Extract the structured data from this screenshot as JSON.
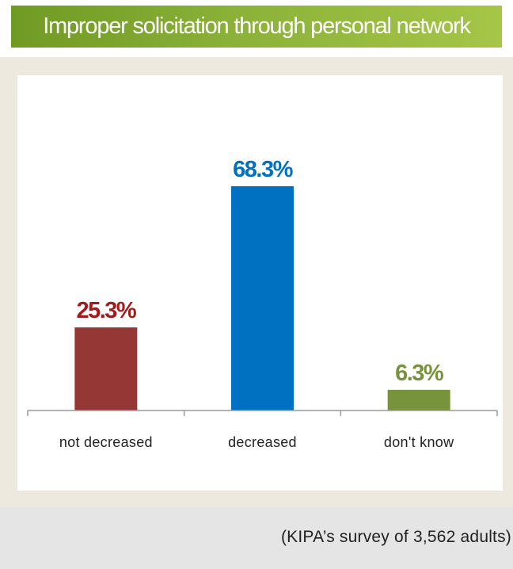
{
  "header": {
    "title": "Improper solicitation through personal network"
  },
  "footer": {
    "source": "(KIPA’s survey of 3,562 adults)"
  },
  "colors": {
    "title_bar": "#8db33a",
    "frame": "#ede9df",
    "not_decreased": "#953735",
    "decreased": "#0070c0",
    "dont_know": "#77933c"
  },
  "chart_data": {
    "type": "bar",
    "categories": [
      "not decreased",
      "decreased",
      "don't know"
    ],
    "values": [
      25.3,
      68.3,
      6.3
    ],
    "value_labels": [
      "25.3%",
      "68.3%",
      "6.3%"
    ],
    "bar_colors": [
      "#953735",
      "#0070c0",
      "#77933c"
    ],
    "label_colors": [
      "#a31c1c",
      "#0070c0",
      "#77933c"
    ],
    "title": "Improper solicitation through personal network",
    "xlabel": "",
    "ylabel": "",
    "ylim": [
      0,
      100
    ],
    "grid": false,
    "legend": "none"
  }
}
